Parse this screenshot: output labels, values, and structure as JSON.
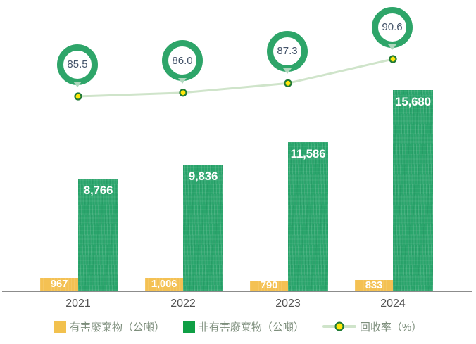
{
  "chart_data": {
    "type": "bar",
    "subtype": "grouped bars with overlaid line (data labels shown, no value axes, no grid)",
    "title": "",
    "categories": [
      "2021",
      "2022",
      "2023",
      "2024"
    ],
    "series": [
      {
        "name": "有害廢棄物（公噸）",
        "type": "bar",
        "values": [
          967,
          1006,
          790,
          833
        ],
        "labels": [
          "967",
          "1,006",
          "790",
          "833"
        ],
        "color": "#f4c153"
      },
      {
        "name": "非有害廢棄物（公噸）",
        "type": "bar",
        "values": [
          8766,
          9836,
          11586,
          15680
        ],
        "labels": [
          "8,766",
          "9,836",
          "11,586",
          "15,680"
        ],
        "color": "#2aa56c"
      },
      {
        "name": "回收率（%）",
        "type": "line",
        "values": [
          85.5,
          86.0,
          87.3,
          90.6
        ],
        "labels": [
          "85.5",
          "86.0",
          "87.3",
          "90.6"
        ],
        "line_color": "#cfe4ca",
        "marker_fill": "#ffe70a",
        "marker_border": "#1f7a35",
        "badge_ring_color": "#2ea569",
        "badge_text_color": "#44546a"
      }
    ],
    "ylabel": "",
    "xlabel": "",
    "ylim": [
      0,
      22700
    ],
    "grid": false,
    "legend_position": "bottom"
  },
  "legend": {
    "items": [
      {
        "label": "有害廢棄物（公噸）",
        "swatch_color": "#f2c14e",
        "marker": "square"
      },
      {
        "label": "非有害廢棄物（公噸）",
        "swatch_color": "#0f9f45",
        "marker": "square"
      },
      {
        "label": "回收率（%）",
        "marker": "line-dot",
        "line_color": "#cfe4ca",
        "dot_fill": "#ffe70a",
        "dot_border": "#1f7a35"
      }
    ]
  },
  "colors": {
    "axis_line": "#8c8c8c",
    "year_label": "#525252",
    "bar_label": "#ffffff",
    "legend_text": "#7d8e7c",
    "badge_tail": "#aed7bd"
  }
}
